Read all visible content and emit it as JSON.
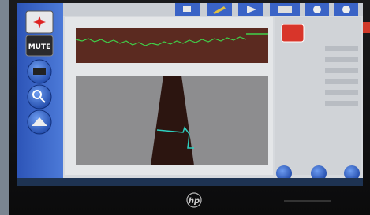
{
  "sidebar": {
    "mute_button": "MUTE"
  },
  "monitor": {
    "brand": "hp"
  }
}
